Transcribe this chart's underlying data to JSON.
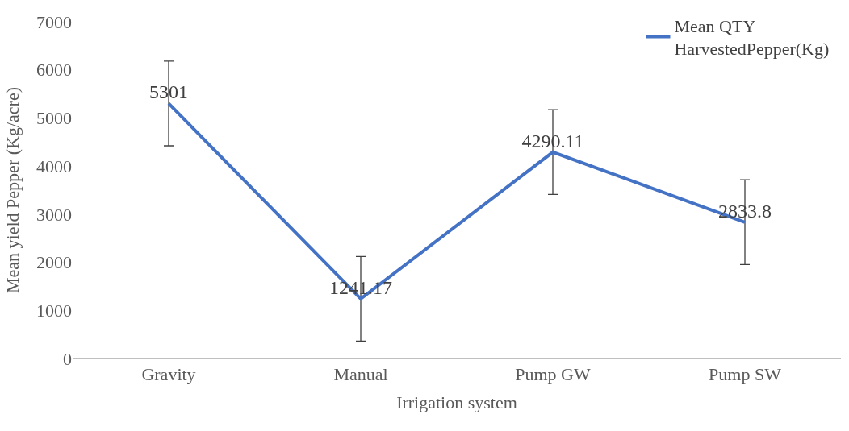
{
  "chart_data": {
    "type": "line",
    "xlabel": "Irrigation system",
    "ylabel": "Mean yield Pepper (Kg/acre)",
    "categories": [
      "Gravity",
      "Manual",
      "Pump GW",
      "Pump SW"
    ],
    "series": [
      {
        "name": "Mean QTY HarvestedPepper(Kg)",
        "color": "#4472c4",
        "values": [
          5301,
          1241.17,
          4290.11,
          2833.8
        ],
        "errors": [
          880,
          880,
          880,
          880
        ]
      }
    ],
    "ylim": [
      0,
      7000
    ],
    "yticks": [
      0,
      1000,
      2000,
      3000,
      4000,
      5000,
      6000,
      7000
    ],
    "data_labels": true,
    "grid": false,
    "legend": "top right",
    "marker": "none",
    "line_style": "solid"
  }
}
